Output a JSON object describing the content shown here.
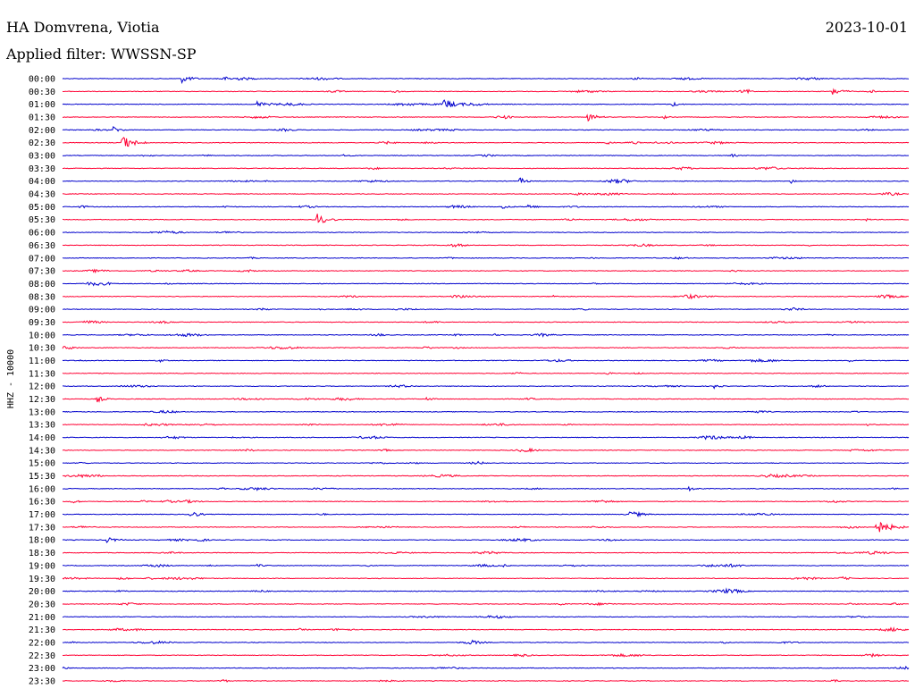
{
  "header": {
    "station": "HA Domvrena, Viotia",
    "date": "2023-10-01",
    "filter": "Applied filter: WWSSN-SP"
  },
  "chart_data": {
    "type": "helicorder",
    "title": "HA Domvrena, Viotia",
    "date": "2023-10-01",
    "filter": "WWSSN-SP",
    "ylabel": "HHZ - 10000",
    "trace_minutes": 30,
    "colors": [
      "#0000cc",
      "#ff0033"
    ],
    "rows": [
      {
        "label": "00:00",
        "events": [
          [
            0.14,
            5.0,
            0.9
          ],
          [
            0.73,
            1.0,
            0.4
          ]
        ]
      },
      {
        "label": "00:30",
        "events": [
          [
            0.91,
            4.0,
            1.0
          ]
        ]
      },
      {
        "label": "01:00",
        "events": [
          [
            0.23,
            3.5,
            0.8
          ],
          [
            0.45,
            5.0,
            1.0
          ],
          [
            0.72,
            3.0,
            0.6
          ]
        ]
      },
      {
        "label": "01:30",
        "events": [
          [
            0.62,
            5.0,
            0.9
          ],
          [
            0.71,
            2.0,
            0.4
          ]
        ]
      },
      {
        "label": "02:00",
        "events": [
          [
            0.06,
            3.5,
            0.7
          ]
        ]
      },
      {
        "label": "02:30",
        "events": [
          [
            0.07,
            8.0,
            1.2
          ]
        ]
      },
      {
        "label": "03:00",
        "events": [
          [
            0.33,
            1.0,
            0.8
          ]
        ]
      },
      {
        "label": "03:30",
        "events": [
          [
            0.45,
            0.6,
            2.0
          ],
          [
            0.87,
            0.6,
            1.5
          ]
        ]
      },
      {
        "label": "04:00",
        "events": [
          [
            0.54,
            4.0,
            0.6
          ],
          [
            0.24,
            0.8,
            0.6
          ],
          [
            0.86,
            2.5,
            0.6
          ]
        ]
      },
      {
        "label": "04:30",
        "events": [
          [
            0.72,
            0.8,
            0.3
          ]
        ]
      },
      {
        "label": "05:00",
        "events": [
          [
            0.52,
            2.5,
            0.6
          ],
          [
            0.55,
            3.0,
            0.6
          ],
          [
            0.19,
            1.2,
            0.8
          ]
        ]
      },
      {
        "label": "05:30",
        "events": [
          [
            0.3,
            7.0,
            1.0
          ],
          [
            0.95,
            1.2,
            0.4
          ]
        ]
      },
      {
        "label": "06:00",
        "events": []
      },
      {
        "label": "06:30",
        "events": [
          [
            0.88,
            1.2,
            0.4
          ]
        ]
      },
      {
        "label": "07:00",
        "events": []
      },
      {
        "label": "07:30",
        "events": []
      },
      {
        "label": "08:00",
        "events": [
          [
            0.12,
            0.6,
            1.5
          ]
        ]
      },
      {
        "label": "08:30",
        "events": [
          [
            0.58,
            1.5,
            0.4
          ]
        ]
      },
      {
        "label": "09:00",
        "events": [
          [
            0.3,
            0.8,
            1.0
          ]
        ]
      },
      {
        "label": "09:30",
        "events": []
      },
      {
        "label": "10:00",
        "events": [
          [
            0.51,
            1.2,
            0.4
          ]
        ]
      },
      {
        "label": "10:30",
        "events": []
      },
      {
        "label": "11:00",
        "events": [
          [
            0.02,
            1.0,
            0.5
          ],
          [
            0.93,
            1.5,
            0.4
          ]
        ]
      },
      {
        "label": "11:30",
        "events": []
      },
      {
        "label": "12:00",
        "events": [
          [
            0.77,
            2.5,
            0.5
          ]
        ]
      },
      {
        "label": "12:30",
        "events": [
          [
            0.04,
            4.0,
            0.7
          ],
          [
            0.43,
            2.0,
            0.5
          ]
        ]
      },
      {
        "label": "13:00",
        "events": []
      },
      {
        "label": "13:30",
        "events": [
          [
            0.95,
            1.0,
            0.6
          ]
        ]
      },
      {
        "label": "14:00",
        "events": [
          [
            0.2,
            0.5,
            1.2
          ]
        ]
      },
      {
        "label": "14:30",
        "events": [
          [
            0.8,
            0.8,
            1.0
          ],
          [
            0.93,
            0.8,
            1.2
          ]
        ]
      },
      {
        "label": "15:00",
        "events": [
          [
            0.02,
            1.0,
            0.6
          ]
        ]
      },
      {
        "label": "15:30",
        "events": []
      },
      {
        "label": "16:00",
        "events": [
          [
            0.74,
            2.5,
            0.6
          ],
          [
            0.98,
            1.5,
            0.5
          ]
        ]
      },
      {
        "label": "16:30",
        "events": []
      },
      {
        "label": "17:00",
        "events": [
          [
            0.15,
            5.0,
            0.8
          ],
          [
            0.67,
            3.0,
            0.7
          ]
        ]
      },
      {
        "label": "17:30",
        "events": [
          [
            0.96,
            9.0,
            1.4
          ]
        ]
      },
      {
        "label": "18:00",
        "events": [
          [
            0.05,
            3.5,
            1.0
          ]
        ]
      },
      {
        "label": "18:30",
        "events": []
      },
      {
        "label": "19:00",
        "events": [
          [
            0.23,
            2.0,
            0.5
          ],
          [
            0.52,
            1.2,
            0.5
          ]
        ]
      },
      {
        "label": "19:30",
        "events": []
      },
      {
        "label": "20:00",
        "events": []
      },
      {
        "label": "20:30",
        "events": [
          [
            0.93,
            0.8,
            0.4
          ]
        ]
      },
      {
        "label": "21:00",
        "events": []
      },
      {
        "label": "21:30",
        "events": [
          [
            0.28,
            1.2,
            0.6
          ]
        ]
      },
      {
        "label": "22:00",
        "events": [
          [
            0.01,
            1.5,
            0.3
          ]
        ]
      },
      {
        "label": "22:30",
        "events": []
      },
      {
        "label": "23:00",
        "events": [
          [
            0.35,
            0.6,
            0.5
          ]
        ]
      },
      {
        "label": "23:30",
        "events": []
      }
    ]
  }
}
